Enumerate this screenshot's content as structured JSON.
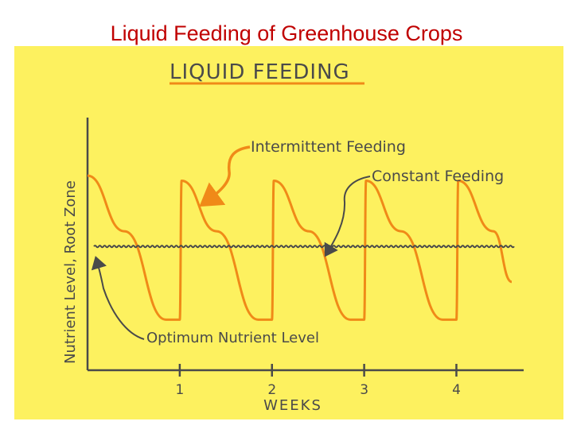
{
  "slide": {
    "title": "Liquid Feeding of Greenhouse Crops"
  },
  "colors": {
    "title": "#c00000",
    "panel_background": "#fdf15f",
    "ink": "#4a4a4a",
    "intermittent_curve": "#f08a18",
    "header_underline": "#f08a18"
  },
  "chart_data": {
    "type": "line",
    "title": "LIQUID FEEDING",
    "xlabel": "WEEKS",
    "ylabel": "Nutrient Level, Root Zone",
    "x_ticks": [
      1,
      2,
      3,
      4
    ],
    "x_tick_labels": [
      "1",
      "2",
      "3",
      "4"
    ],
    "xlim": [
      0,
      4.6
    ],
    "ylim": [
      0,
      1
    ],
    "grid": false,
    "legend": "none",
    "series": [
      {
        "name": "Intermittent Feeding",
        "style": "sawtooth",
        "x": [
          0,
          0.4,
          0.85,
          1.0,
          1.02,
          1.4,
          1.85,
          2.0,
          2.02,
          2.4,
          2.85,
          3.0,
          3.02,
          3.4,
          3.85,
          4.0,
          4.02,
          4.4,
          4.6
        ],
        "y": [
          0.77,
          0.55,
          0.2,
          0.2,
          0.75,
          0.55,
          0.2,
          0.2,
          0.75,
          0.55,
          0.2,
          0.2,
          0.75,
          0.55,
          0.2,
          0.2,
          0.75,
          0.55,
          0.35
        ]
      },
      {
        "name": "Constant Feeding",
        "style": "wavy",
        "x": [
          0,
          4.6
        ],
        "y": [
          0.49,
          0.49
        ]
      }
    ],
    "annotations": [
      {
        "text": "Intermittent Feeding",
        "target": "Intermittent Feeding"
      },
      {
        "text": "Constant Feeding",
        "target": "Constant Feeding"
      },
      {
        "text": "Optimum Nutrient Level",
        "target": "Optimum Nutrient Level"
      }
    ]
  }
}
